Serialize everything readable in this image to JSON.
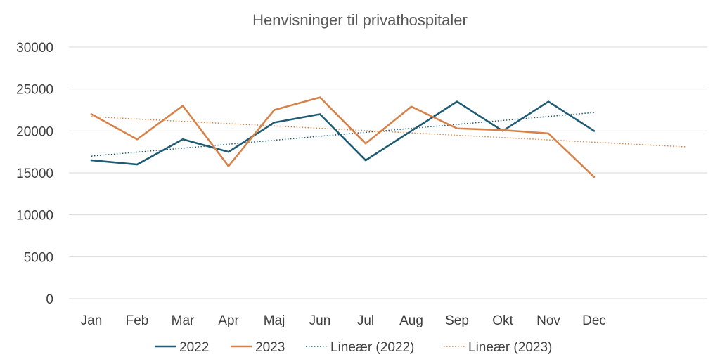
{
  "chart_data": {
    "type": "line",
    "title": "Henvisninger til privathospitaler",
    "xlabel": "",
    "ylabel": "",
    "categories": [
      "Jan",
      "Feb",
      "Mar",
      "Apr",
      "Maj",
      "Jun",
      "Jul",
      "Aug",
      "Sep",
      "Okt",
      "Nov",
      "Dec"
    ],
    "ylim": [
      0,
      30000
    ],
    "yticks": [
      0,
      5000,
      10000,
      15000,
      20000,
      25000,
      30000
    ],
    "grid": true,
    "legend_position": "bottom",
    "series": [
      {
        "name": "2022",
        "color": "#1f5c73",
        "style": "solid",
        "values": [
          16500,
          16000,
          19000,
          17500,
          21000,
          22000,
          16500,
          20000,
          23500,
          20000,
          23500,
          20000
        ]
      },
      {
        "name": "2023",
        "color": "#d5834a",
        "style": "solid",
        "values": [
          22000,
          19000,
          23000,
          15800,
          22500,
          24000,
          18500,
          22900,
          20300,
          20100,
          19700,
          14500
        ]
      }
    ],
    "trendlines": [
      {
        "name": "Lineær (2022)",
        "color": "#1f5c73",
        "style": "dotted",
        "start": 17000,
        "end": 22200,
        "x_end_index": 11
      },
      {
        "name": "Lineær (2023)",
        "color": "#d5834a",
        "style": "dotted",
        "start": 21700,
        "end": 18100,
        "x_end_index": 13
      }
    ]
  }
}
